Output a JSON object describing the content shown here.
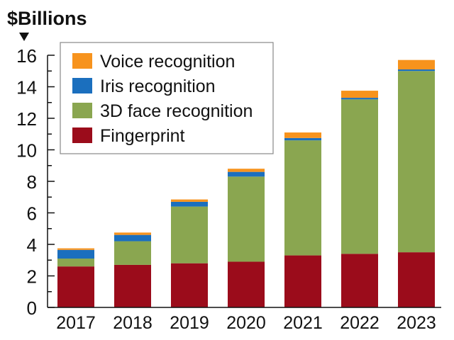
{
  "chart_data": {
    "type": "bar",
    "stacked": true,
    "ylabel": "$Billions",
    "ylim": [
      0,
      16
    ],
    "yticks": [
      0,
      2,
      4,
      6,
      8,
      10,
      12,
      14,
      16
    ],
    "categories": [
      "2017",
      "2018",
      "2019",
      "2020",
      "2021",
      "2022",
      "2023"
    ],
    "series": [
      {
        "name": "Fingerprint",
        "color": "#9b0c1b",
        "values": [
          2.6,
          2.7,
          2.8,
          2.9,
          3.3,
          3.4,
          3.5
        ]
      },
      {
        "name": "3D face recognition",
        "color": "#8aa650",
        "values": [
          0.5,
          1.5,
          3.6,
          5.4,
          7.3,
          9.8,
          11.5
        ]
      },
      {
        "name": "Iris recognition",
        "color": "#1b6fbe",
        "values": [
          0.55,
          0.4,
          0.3,
          0.3,
          0.15,
          0.1,
          0.1
        ]
      },
      {
        "name": "Voice recognition",
        "color": "#f7931d",
        "values": [
          0.1,
          0.15,
          0.15,
          0.2,
          0.35,
          0.45,
          0.6
        ]
      }
    ],
    "legend_order": [
      "Voice recognition",
      "Iris recognition",
      "3D face recognition",
      "Fingerprint"
    ],
    "legend_position": "top-left",
    "grid": false
  }
}
